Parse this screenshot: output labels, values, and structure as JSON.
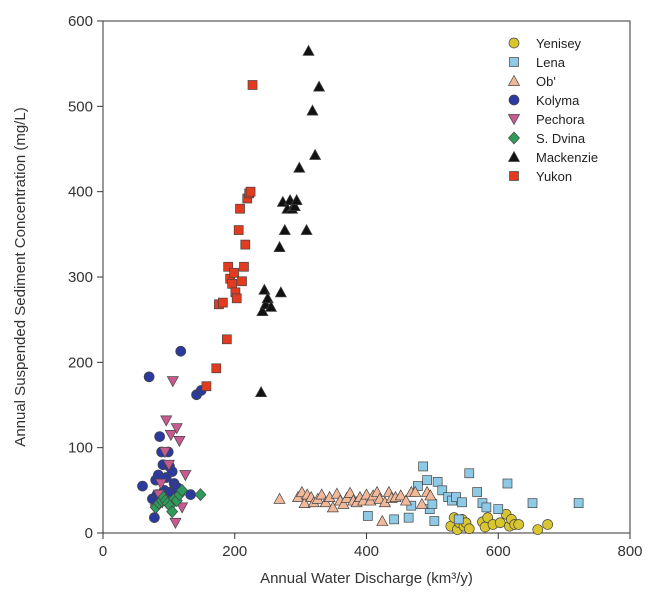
{
  "chart_data": {
    "type": "scatter",
    "xlabel": "Annual Water Discharge (km³/y)",
    "ylabel": "Annual Suspended Sediment Concentration (mg/L)",
    "xlim": [
      0,
      800
    ],
    "ylim": [
      0,
      600
    ],
    "x_ticks": [
      "0",
      "200",
      "400",
      "600",
      "800"
    ],
    "y_ticks": [
      "0",
      "100",
      "200",
      "300",
      "400",
      "500",
      "600"
    ],
    "grid": false,
    "legend_position": "top-right",
    "series": [
      {
        "name": "Yenisey",
        "marker": "circle",
        "color": "#d9c62e",
        "points": [
          [
            528,
            8
          ],
          [
            533,
            18
          ],
          [
            538,
            4
          ],
          [
            541,
            12
          ],
          [
            545,
            16
          ],
          [
            548,
            8
          ],
          [
            551,
            12
          ],
          [
            556,
            5
          ],
          [
            576,
            13
          ],
          [
            580,
            7
          ],
          [
            584,
            18
          ],
          [
            592,
            10
          ],
          [
            603,
            12
          ],
          [
            612,
            22
          ],
          [
            617,
            8
          ],
          [
            620,
            16
          ],
          [
            625,
            10
          ],
          [
            631,
            10
          ],
          [
            660,
            4
          ],
          [
            675,
            10
          ]
        ]
      },
      {
        "name": "Lena",
        "marker": "square",
        "color": "#8ecae6",
        "points": [
          [
            402,
            20
          ],
          [
            442,
            16
          ],
          [
            464,
            18
          ],
          [
            468,
            32
          ],
          [
            478,
            55
          ],
          [
            486,
            78
          ],
          [
            492,
            62
          ],
          [
            496,
            28
          ],
          [
            500,
            34
          ],
          [
            503,
            14
          ],
          [
            508,
            60
          ],
          [
            515,
            50
          ],
          [
            524,
            42
          ],
          [
            530,
            38
          ],
          [
            536,
            42
          ],
          [
            540,
            16
          ],
          [
            545,
            36
          ],
          [
            556,
            70
          ],
          [
            568,
            48
          ],
          [
            576,
            35
          ],
          [
            582,
            30
          ],
          [
            600,
            28
          ],
          [
            614,
            58
          ],
          [
            652,
            35
          ],
          [
            722,
            35
          ]
        ]
      },
      {
        "name": "Ob'",
        "marker": "triangle-up",
        "color": "#f2b89a",
        "points": [
          [
            268,
            40
          ],
          [
            296,
            42
          ],
          [
            302,
            48
          ],
          [
            306,
            35
          ],
          [
            310,
            45
          ],
          [
            316,
            42
          ],
          [
            320,
            36
          ],
          [
            326,
            40
          ],
          [
            332,
            45
          ],
          [
            338,
            36
          ],
          [
            344,
            42
          ],
          [
            349,
            30
          ],
          [
            355,
            46
          ],
          [
            360,
            38
          ],
          [
            365,
            34
          ],
          [
            370,
            41
          ],
          [
            375,
            47
          ],
          [
            380,
            38
          ],
          [
            385,
            36
          ],
          [
            390,
            42
          ],
          [
            395,
            38
          ],
          [
            400,
            45
          ],
          [
            406,
            38
          ],
          [
            410,
            44
          ],
          [
            416,
            48
          ],
          [
            420,
            40
          ],
          [
            424,
            14
          ],
          [
            428,
            36
          ],
          [
            434,
            48
          ],
          [
            438,
            41
          ],
          [
            444,
            42
          ],
          [
            452,
            44
          ],
          [
            460,
            38
          ],
          [
            468,
            48
          ],
          [
            474,
            48
          ],
          [
            484,
            34
          ],
          [
            492,
            48
          ],
          [
            497,
            44
          ]
        ]
      },
      {
        "name": "Kolyma",
        "marker": "circle",
        "color": "#2b3a9c",
        "points": [
          [
            60,
            55
          ],
          [
            70,
            183
          ],
          [
            75,
            40
          ],
          [
            78,
            18
          ],
          [
            80,
            62
          ],
          [
            82,
            45
          ],
          [
            84,
            68
          ],
          [
            86,
            113
          ],
          [
            89,
            95
          ],
          [
            91,
            80
          ],
          [
            93,
            50
          ],
          [
            96,
            65
          ],
          [
            99,
            95
          ],
          [
            101,
            78
          ],
          [
            103,
            48
          ],
          [
            105,
            72
          ],
          [
            108,
            58
          ],
          [
            113,
            53
          ],
          [
            118,
            213
          ],
          [
            133,
            45
          ],
          [
            142,
            162
          ],
          [
            149,
            167
          ]
        ]
      },
      {
        "name": "Pechora",
        "marker": "triangle-down",
        "color": "#c75b8f",
        "points": [
          [
            80,
            28
          ],
          [
            85,
            45
          ],
          [
            88,
            58
          ],
          [
            90,
            36
          ],
          [
            94,
            95
          ],
          [
            96,
            132
          ],
          [
            100,
            80
          ],
          [
            103,
            115
          ],
          [
            106,
            178
          ],
          [
            110,
            12
          ],
          [
            112,
            123
          ],
          [
            116,
            108
          ],
          [
            120,
            30
          ],
          [
            125,
            68
          ]
        ]
      },
      {
        "name": "S. Dvina",
        "marker": "diamond",
        "color": "#2e9b5a",
        "points": [
          [
            80,
            30
          ],
          [
            85,
            35
          ],
          [
            89,
            38
          ],
          [
            92,
            42
          ],
          [
            95,
            38
          ],
          [
            98,
            35
          ],
          [
            102,
            32
          ],
          [
            105,
            25
          ],
          [
            108,
            40
          ],
          [
            112,
            38
          ],
          [
            116,
            45
          ],
          [
            120,
            50
          ],
          [
            148,
            45
          ]
        ]
      },
      {
        "name": "Mackenzie",
        "marker": "triangle-up",
        "color": "#111111",
        "points": [
          [
            240,
            165
          ],
          [
            242,
            260
          ],
          [
            245,
            285
          ],
          [
            247,
            268
          ],
          [
            250,
            275
          ],
          [
            255,
            265
          ],
          [
            268,
            335
          ],
          [
            270,
            282
          ],
          [
            273,
            388
          ],
          [
            276,
            355
          ],
          [
            280,
            380
          ],
          [
            284,
            390
          ],
          [
            287,
            380
          ],
          [
            291,
            383
          ],
          [
            294,
            390
          ],
          [
            298,
            428
          ],
          [
            309,
            355
          ],
          [
            312,
            565
          ],
          [
            318,
            495
          ],
          [
            322,
            443
          ],
          [
            328,
            523
          ]
        ]
      },
      {
        "name": "Yukon",
        "marker": "square",
        "color": "#e23b1f",
        "points": [
          [
            157,
            172
          ],
          [
            172,
            193
          ],
          [
            176,
            268
          ],
          [
            182,
            270
          ],
          [
            188,
            227
          ],
          [
            190,
            312
          ],
          [
            193,
            298
          ],
          [
            196,
            292
          ],
          [
            199,
            305
          ],
          [
            201,
            282
          ],
          [
            203,
            275
          ],
          [
            206,
            355
          ],
          [
            208,
            380
          ],
          [
            211,
            295
          ],
          [
            214,
            312
          ],
          [
            216,
            338
          ],
          [
            219,
            392
          ],
          [
            222,
            398
          ],
          [
            224,
            400
          ],
          [
            227,
            525
          ]
        ]
      }
    ]
  }
}
